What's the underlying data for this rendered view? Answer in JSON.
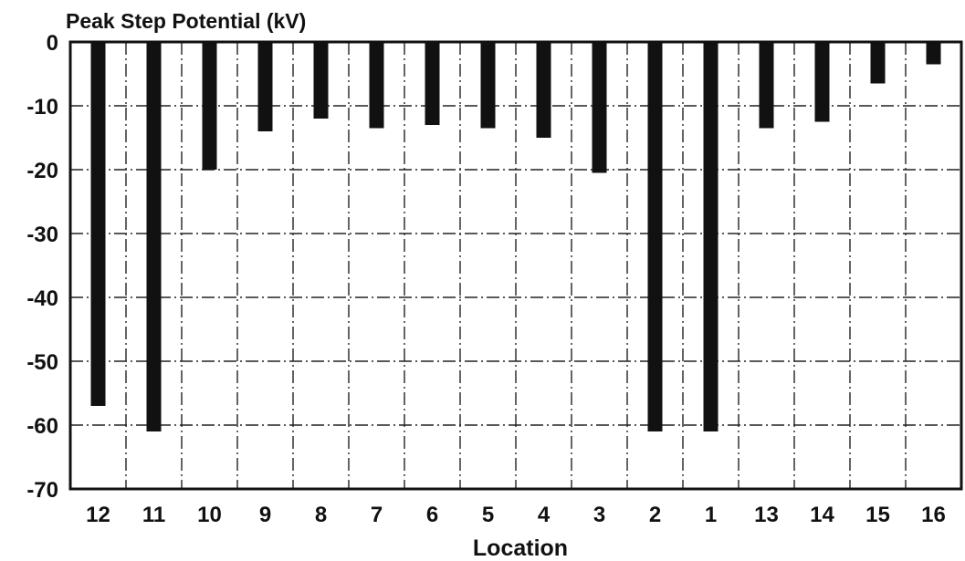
{
  "chart_data": {
    "type": "bar",
    "title": "Peak Step Potential (kV)",
    "xlabel": "Location",
    "ylabel": "",
    "categories": [
      "12",
      "11",
      "10",
      "9",
      "8",
      "7",
      "6",
      "5",
      "4",
      "3",
      "2",
      "1",
      "13",
      "14",
      "15",
      "16"
    ],
    "values": [
      -57,
      -61,
      -20,
      -14,
      -12,
      -13.5,
      -13,
      -13.5,
      -15,
      -20.5,
      -61,
      -61,
      -13.5,
      -12.5,
      -6.5,
      -3.5
    ],
    "ylim": [
      -70,
      0
    ],
    "yticks": [
      0,
      -10,
      -20,
      -30,
      -40,
      -50,
      -60,
      -70
    ],
    "ytick_labels": [
      "0",
      "-10",
      "-20",
      "-30",
      "-40",
      "-50",
      "-60",
      "-70"
    ],
    "grid": true,
    "grid_style": "dash-dot",
    "legend": "none",
    "bar_color": "#111111",
    "grid_color": "#222222"
  }
}
